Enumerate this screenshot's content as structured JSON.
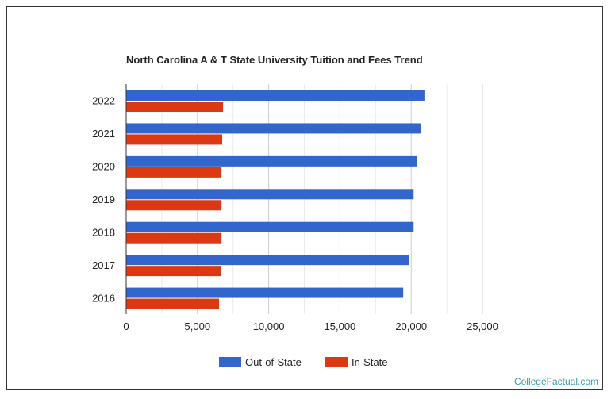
{
  "chart_data": {
    "type": "bar",
    "orientation": "horizontal",
    "title": "North Carolina A & T State University Tuition and Fees Trend",
    "categories": [
      "2022",
      "2021",
      "2020",
      "2019",
      "2018",
      "2017",
      "2016"
    ],
    "series": [
      {
        "name": "Out-of-State",
        "color": "#3366cc",
        "values": [
          20930,
          20710,
          20430,
          20170,
          20170,
          19830,
          19440
        ]
      },
      {
        "name": "In-State",
        "color": "#dc3912",
        "values": [
          6800,
          6740,
          6690,
          6690,
          6690,
          6630,
          6520
        ]
      }
    ],
    "xticks": [
      0,
      5000,
      10000,
      15000,
      20000,
      25000
    ],
    "xtick_labels": [
      "0",
      "5,000",
      "10,000",
      "15,000",
      "20,000",
      "25,000"
    ],
    "xlim": [
      0,
      25000
    ],
    "grid": true,
    "legend": "bottom"
  },
  "footer": "CollegeFactual.com"
}
